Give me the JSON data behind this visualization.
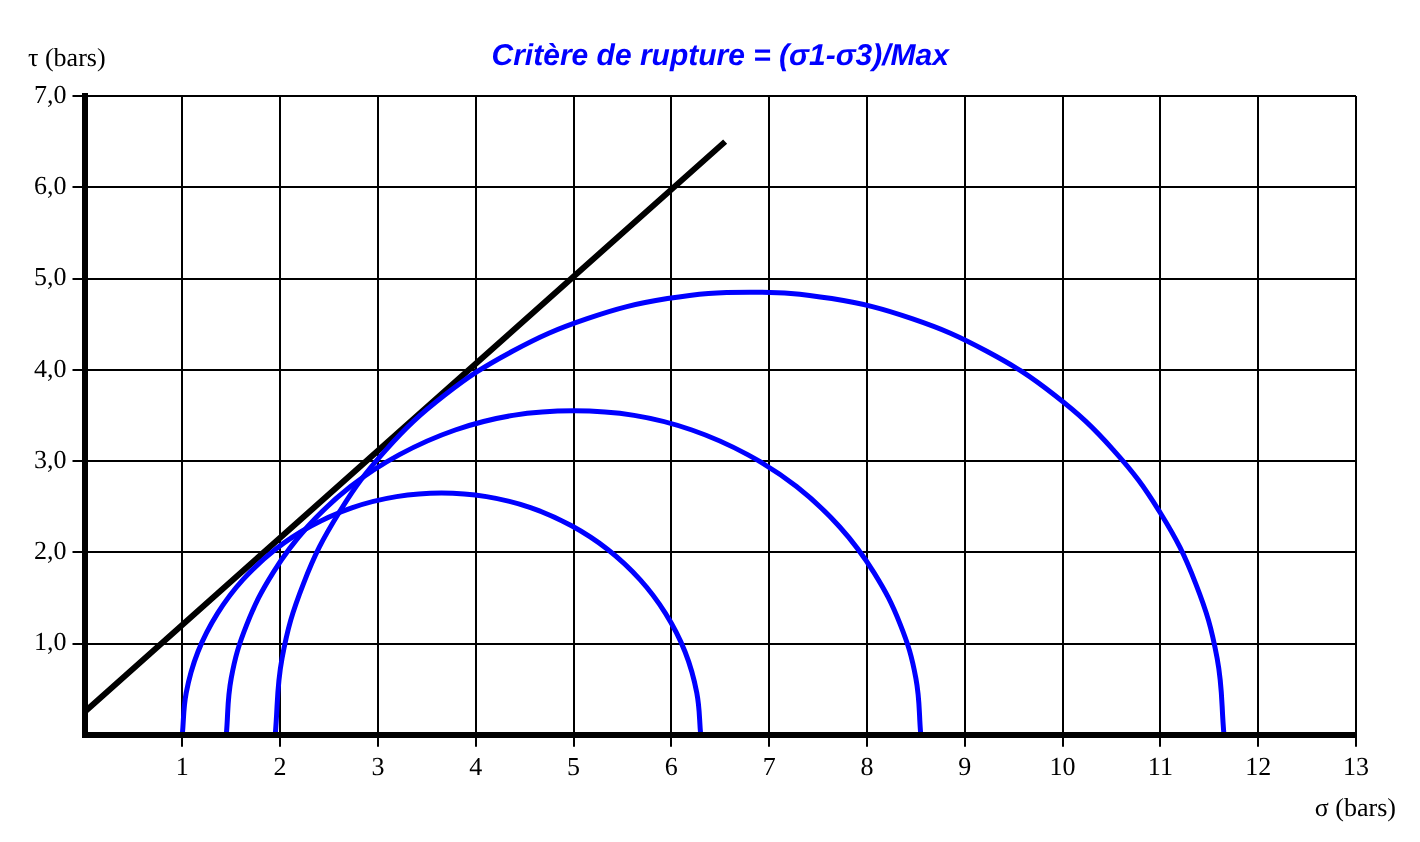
{
  "chart_data": {
    "type": "line",
    "title": "Critère de rupture = (σ1-σ3)/Max",
    "xlabel": "σ (bars)",
    "ylabel": "τ (bars)",
    "xlim": [
      0,
      13
    ],
    "ylim": [
      0,
      7
    ],
    "xticks": [
      1,
      2,
      3,
      4,
      5,
      6,
      7,
      8,
      9,
      10,
      11,
      12,
      13
    ],
    "yticks": [
      {
        "value": 1,
        "label": "1,0"
      },
      {
        "value": 2,
        "label": "2,0"
      },
      {
        "value": 3,
        "label": "3,0"
      },
      {
        "value": 4,
        "label": "4,0"
      },
      {
        "value": 5,
        "label": "5,0"
      },
      {
        "value": 6,
        "label": "6,0"
      },
      {
        "value": 7,
        "label": "7,0"
      }
    ],
    "grid": true,
    "legend": false,
    "marker": "none",
    "series": [
      {
        "color": "#0000ff",
        "x": [
          1.0,
          1.04,
          1.16,
          1.36,
          1.62,
          1.95,
          2.32,
          2.74,
          3.19,
          3.65,
          4.11,
          4.56,
          4.98,
          5.35,
          5.68,
          5.94,
          6.14,
          6.26,
          6.3
        ],
        "values": [
          0,
          0.46,
          0.91,
          1.33,
          1.7,
          2.03,
          2.29,
          2.49,
          2.61,
          2.65,
          2.61,
          2.49,
          2.29,
          2.03,
          1.7,
          1.33,
          0.91,
          0.46,
          0
        ]
      },
      {
        "color": "#0000ff",
        "x": [
          1.45,
          1.5,
          1.66,
          1.93,
          2.28,
          2.72,
          3.22,
          3.79,
          4.38,
          5.0,
          5.62,
          6.21,
          6.78,
          7.28,
          7.72,
          8.07,
          8.34,
          8.5,
          8.55
        ],
        "values": [
          0,
          0.62,
          1.21,
          1.78,
          2.28,
          2.72,
          3.07,
          3.34,
          3.5,
          3.55,
          3.5,
          3.34,
          3.07,
          2.72,
          2.28,
          1.78,
          1.21,
          0.62,
          0
        ]
      },
      {
        "color": "#0000ff",
        "x": [
          1.95,
          2.02,
          2.24,
          2.6,
          3.08,
          3.68,
          4.37,
          5.14,
          5.96,
          6.8,
          7.64,
          8.46,
          9.23,
          9.92,
          10.52,
          11.0,
          11.36,
          11.58,
          11.65
        ],
        "values": [
          0,
          0.84,
          1.66,
          2.43,
          3.12,
          3.72,
          4.2,
          4.56,
          4.78,
          4.85,
          4.78,
          4.56,
          4.2,
          3.72,
          3.12,
          2.43,
          1.66,
          0.84,
          0
        ]
      },
      {
        "color": "#000000",
        "x": [
          0,
          6.55
        ],
        "values": [
          0.25,
          6.5
        ]
      }
    ]
  }
}
